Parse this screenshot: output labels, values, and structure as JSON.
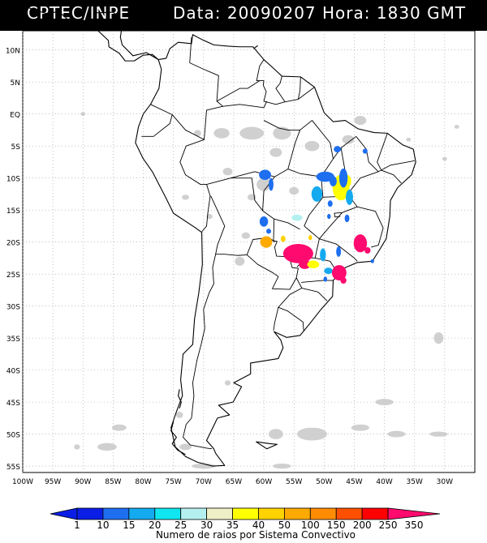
{
  "header": {
    "institution": "CPTEC/INPE",
    "date_label": "Data:",
    "date_value": "20090207",
    "time_label": "Hora:",
    "time_value": "1830",
    "time_zone": "GMT"
  },
  "map": {
    "lon_range": [
      -100,
      -25
    ],
    "lat_range": [
      -56,
      13
    ],
    "lat_labels": [
      "10N",
      "5N",
      "EQ",
      "5S",
      "10S",
      "15S",
      "20S",
      "25S",
      "30S",
      "35S",
      "40S",
      "45S",
      "50S",
      "55S"
    ],
    "lat_values": [
      10,
      5,
      0,
      -5,
      -10,
      -15,
      -20,
      -25,
      -30,
      -35,
      -40,
      -45,
      -50,
      -55
    ],
    "lon_labels": [
      "100W",
      "95W",
      "90W",
      "85W",
      "80W",
      "75W",
      "70W",
      "65W",
      "60W",
      "55W",
      "50W",
      "45W",
      "40W",
      "35W",
      "30W"
    ],
    "lon_values": [
      -100,
      -95,
      -90,
      -85,
      -80,
      -75,
      -70,
      -65,
      -60,
      -55,
      -50,
      -45,
      -40,
      -35,
      -30
    ],
    "gridlines": true,
    "cloud_color": "#c8c8c8"
  },
  "colorbar": {
    "ticks": [
      "1",
      "10",
      "15",
      "20",
      "25",
      "30",
      "35",
      "40",
      "50",
      "100",
      "150",
      "200",
      "250",
      "350"
    ],
    "colors": [
      "#0a1ee6",
      "#1e6ef0",
      "#14aaf0",
      "#10e6f0",
      "#b4f0f0",
      "#f0f0c8",
      "#ffff00",
      "#ffd200",
      "#ffaa00",
      "#ff8c00",
      "#ff5000",
      "#ff0000",
      "#ff0a6e"
    ],
    "caption": "Numero de raios por Sistema Convectivo"
  },
  "clusters": [
    {
      "lon": -47.2,
      "lat": -11.5,
      "rx": 1.4,
      "ry": 2.0,
      "color": "#ffff00"
    },
    {
      "lon": -46.2,
      "lat": -10.5,
      "rx": 0.7,
      "ry": 1.0,
      "color": "#ffff00"
    },
    {
      "lon": -46.8,
      "lat": -10.0,
      "rx": 0.7,
      "ry": 1.5,
      "color": "#1e6ef0"
    },
    {
      "lon": -49.8,
      "lat": -9.8,
      "rx": 1.5,
      "ry": 0.8,
      "color": "#1e6ef0"
    },
    {
      "lon": -48.5,
      "lat": -10.5,
      "rx": 0.6,
      "ry": 0.8,
      "color": "#1e6ef0"
    },
    {
      "lon": -47.8,
      "lat": -5.5,
      "rx": 0.6,
      "ry": 0.5,
      "color": "#1e6ef0"
    },
    {
      "lon": -43.2,
      "lat": -5.8,
      "rx": 0.4,
      "ry": 0.4,
      "color": "#1e6ef0"
    },
    {
      "lon": -59.8,
      "lat": -9.5,
      "rx": 1.0,
      "ry": 0.8,
      "color": "#1e6ef0"
    },
    {
      "lon": -58.8,
      "lat": -11.0,
      "rx": 0.4,
      "ry": 1.0,
      "color": "#1e6ef0"
    },
    {
      "lon": -51.2,
      "lat": -12.5,
      "rx": 0.9,
      "ry": 1.2,
      "color": "#14aaf0"
    },
    {
      "lon": -45.8,
      "lat": -13.0,
      "rx": 0.6,
      "ry": 1.2,
      "color": "#14aaf0"
    },
    {
      "lon": -49.0,
      "lat": -14.0,
      "rx": 0.4,
      "ry": 0.5,
      "color": "#1e6ef0"
    },
    {
      "lon": -49.2,
      "lat": -16.0,
      "rx": 0.3,
      "ry": 0.4,
      "color": "#1e6ef0"
    },
    {
      "lon": -46.2,
      "lat": -16.3,
      "rx": 0.4,
      "ry": 0.6,
      "color": "#1e6ef0"
    },
    {
      "lon": -60.0,
      "lat": -16.8,
      "rx": 0.7,
      "ry": 0.8,
      "color": "#1e6ef0"
    },
    {
      "lon": -59.2,
      "lat": -18.3,
      "rx": 0.4,
      "ry": 0.4,
      "color": "#1e6ef0"
    },
    {
      "lon": -54.5,
      "lat": -16.2,
      "rx": 0.9,
      "ry": 0.5,
      "color": "#b4f0f0"
    },
    {
      "lon": -59.6,
      "lat": -20.0,
      "rx": 1.0,
      "ry": 0.9,
      "color": "#ffaa00"
    },
    {
      "lon": -56.8,
      "lat": -19.5,
      "rx": 0.4,
      "ry": 0.5,
      "color": "#ffd200"
    },
    {
      "lon": -52.3,
      "lat": -19.3,
      "rx": 0.3,
      "ry": 0.4,
      "color": "#ffd200"
    },
    {
      "lon": -54.3,
      "lat": -21.8,
      "rx": 2.5,
      "ry": 1.5,
      "color": "#ff0a6e"
    },
    {
      "lon": -53.2,
      "lat": -23.5,
      "rx": 1.0,
      "ry": 0.7,
      "color": "#ff0a6e"
    },
    {
      "lon": -51.8,
      "lat": -23.5,
      "rx": 1.0,
      "ry": 0.6,
      "color": "#ffff00"
    },
    {
      "lon": -50.2,
      "lat": -22.0,
      "rx": 0.5,
      "ry": 1.0,
      "color": "#14aaf0"
    },
    {
      "lon": -49.3,
      "lat": -24.5,
      "rx": 0.7,
      "ry": 0.5,
      "color": "#14aaf0"
    },
    {
      "lon": -49.8,
      "lat": -25.8,
      "rx": 0.3,
      "ry": 0.4,
      "color": "#1e6ef0"
    },
    {
      "lon": -47.5,
      "lat": -24.8,
      "rx": 1.2,
      "ry": 1.2,
      "color": "#ff0a6e"
    },
    {
      "lon": -46.8,
      "lat": -26.0,
      "rx": 0.5,
      "ry": 0.5,
      "color": "#ff0a6e"
    },
    {
      "lon": -44.0,
      "lat": -20.2,
      "rx": 1.1,
      "ry": 1.4,
      "color": "#ff0a6e"
    },
    {
      "lon": -42.8,
      "lat": -21.3,
      "rx": 0.5,
      "ry": 0.5,
      "color": "#ff0a6e"
    },
    {
      "lon": -47.6,
      "lat": -21.5,
      "rx": 0.4,
      "ry": 0.8,
      "color": "#1e6ef0"
    },
    {
      "lon": -42.0,
      "lat": -23.0,
      "rx": 0.3,
      "ry": 0.3,
      "color": "#1e6ef0"
    }
  ]
}
